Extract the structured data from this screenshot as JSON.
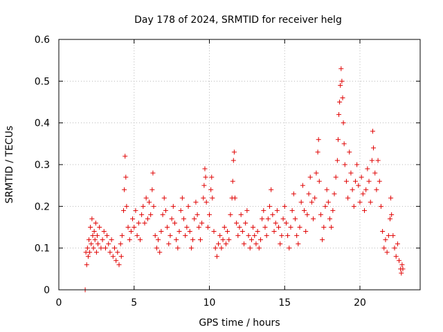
{
  "chart_data": {
    "type": "scatter",
    "title": "Day 178 of 2024, SRMTID for receiver helg",
    "xlabel": "GPS time / hours",
    "ylabel": "SRMTID / TECUs",
    "xlim": [
      0,
      24
    ],
    "ylim": [
      0,
      0.6
    ],
    "xticks": [
      0,
      5,
      10,
      15,
      20
    ],
    "yticks": [
      0,
      0.1,
      0.2,
      0.3,
      0.4,
      0.5,
      0.6
    ],
    "x_tick_labels": [
      "0",
      "5",
      "10",
      "15",
      "20"
    ],
    "y_tick_labels": [
      "0",
      "0.1",
      "0.2",
      "0.3",
      "0.4",
      "0.5",
      "0.6"
    ],
    "grid": true,
    "marker": "plus",
    "color": "#e00000",
    "series": [
      {
        "name": "SRMTID",
        "points": [
          [
            1.75,
            0.0
          ],
          [
            1.8,
            0.09
          ],
          [
            1.85,
            0.06
          ],
          [
            1.9,
            0.1
          ],
          [
            1.95,
            0.08
          ],
          [
            2.0,
            0.12
          ],
          [
            2.05,
            0.09
          ],
          [
            2.1,
            0.15
          ],
          [
            2.15,
            0.11
          ],
          [
            2.2,
            0.17
          ],
          [
            2.25,
            0.13
          ],
          [
            2.3,
            0.1
          ],
          [
            2.35,
            0.14
          ],
          [
            2.4,
            0.12
          ],
          [
            2.45,
            0.16
          ],
          [
            2.5,
            0.09
          ],
          [
            2.55,
            0.13
          ],
          [
            2.6,
            0.11
          ],
          [
            2.7,
            0.15
          ],
          [
            2.8,
            0.1
          ],
          [
            2.9,
            0.12
          ],
          [
            3.0,
            0.14
          ],
          [
            3.1,
            0.1
          ],
          [
            3.2,
            0.13
          ],
          [
            3.3,
            0.11
          ],
          [
            3.4,
            0.09
          ],
          [
            3.5,
            0.12
          ],
          [
            3.6,
            0.08
          ],
          [
            3.7,
            0.1
          ],
          [
            3.8,
            0.07
          ],
          [
            3.9,
            0.09
          ],
          [
            4.0,
            0.06
          ],
          [
            4.1,
            0.11
          ],
          [
            4.15,
            0.08
          ],
          [
            4.2,
            0.13
          ],
          [
            4.3,
            0.19
          ],
          [
            4.35,
            0.24
          ],
          [
            4.4,
            0.32
          ],
          [
            4.45,
            0.27
          ],
          [
            4.5,
            0.2
          ],
          [
            4.6,
            0.15
          ],
          [
            4.7,
            0.12
          ],
          [
            4.8,
            0.14
          ],
          [
            4.9,
            0.17
          ],
          [
            5.0,
            0.15
          ],
          [
            5.1,
            0.19
          ],
          [
            5.2,
            0.13
          ],
          [
            5.3,
            0.16
          ],
          [
            5.4,
            0.12
          ],
          [
            5.5,
            0.18
          ],
          [
            5.6,
            0.2
          ],
          [
            5.7,
            0.16
          ],
          [
            5.8,
            0.22
          ],
          [
            5.9,
            0.17
          ],
          [
            6.0,
            0.21
          ],
          [
            6.1,
            0.18
          ],
          [
            6.2,
            0.24
          ],
          [
            6.25,
            0.28
          ],
          [
            6.3,
            0.2
          ],
          [
            6.4,
            0.13
          ],
          [
            6.5,
            0.1
          ],
          [
            6.6,
            0.12
          ],
          [
            6.7,
            0.09
          ],
          [
            6.8,
            0.14
          ],
          [
            6.9,
            0.18
          ],
          [
            7.0,
            0.22
          ],
          [
            7.1,
            0.19
          ],
          [
            7.2,
            0.15
          ],
          [
            7.3,
            0.11
          ],
          [
            7.4,
            0.13
          ],
          [
            7.5,
            0.17
          ],
          [
            7.6,
            0.2
          ],
          [
            7.7,
            0.16
          ],
          [
            7.8,
            0.12
          ],
          [
            7.9,
            0.1
          ],
          [
            8.0,
            0.14
          ],
          [
            8.1,
            0.19
          ],
          [
            8.2,
            0.22
          ],
          [
            8.3,
            0.17
          ],
          [
            8.4,
            0.13
          ],
          [
            8.5,
            0.15
          ],
          [
            8.6,
            0.2
          ],
          [
            8.7,
            0.14
          ],
          [
            8.8,
            0.1
          ],
          [
            8.9,
            0.12
          ],
          [
            9.0,
            0.17
          ],
          [
            9.1,
            0.21
          ],
          [
            9.2,
            0.18
          ],
          [
            9.3,
            0.15
          ],
          [
            9.4,
            0.12
          ],
          [
            9.5,
            0.16
          ],
          [
            9.6,
            0.22
          ],
          [
            9.65,
            0.25
          ],
          [
            9.7,
            0.29
          ],
          [
            9.75,
            0.27
          ],
          [
            9.8,
            0.21
          ],
          [
            9.9,
            0.15
          ],
          [
            10.0,
            0.18
          ],
          [
            10.1,
            0.24
          ],
          [
            10.15,
            0.27
          ],
          [
            10.2,
            0.22
          ],
          [
            10.3,
            0.14
          ],
          [
            10.4,
            0.1
          ],
          [
            10.5,
            0.08
          ],
          [
            10.6,
            0.11
          ],
          [
            10.7,
            0.13
          ],
          [
            10.8,
            0.1
          ],
          [
            10.9,
            0.12
          ],
          [
            11.0,
            0.15
          ],
          [
            11.1,
            0.11
          ],
          [
            11.2,
            0.14
          ],
          [
            11.3,
            0.12
          ],
          [
            11.4,
            0.18
          ],
          [
            11.5,
            0.22
          ],
          [
            11.55,
            0.26
          ],
          [
            11.6,
            0.31
          ],
          [
            11.65,
            0.33
          ],
          [
            11.7,
            0.22
          ],
          [
            11.8,
            0.16
          ],
          [
            11.9,
            0.13
          ],
          [
            12.0,
            0.15
          ],
          [
            12.1,
            0.18
          ],
          [
            12.2,
            0.14
          ],
          [
            12.3,
            0.11
          ],
          [
            12.4,
            0.16
          ],
          [
            12.5,
            0.19
          ],
          [
            12.6,
            0.13
          ],
          [
            12.7,
            0.1
          ],
          [
            12.8,
            0.12
          ],
          [
            12.9,
            0.15
          ],
          [
            13.0,
            0.13
          ],
          [
            13.1,
            0.11
          ],
          [
            13.2,
            0.14
          ],
          [
            13.3,
            0.1
          ],
          [
            13.4,
            0.12
          ],
          [
            13.5,
            0.17
          ],
          [
            13.6,
            0.19
          ],
          [
            13.7,
            0.15
          ],
          [
            13.8,
            0.13
          ],
          [
            13.9,
            0.17
          ],
          [
            14.0,
            0.2
          ],
          [
            14.1,
            0.24
          ],
          [
            14.2,
            0.18
          ],
          [
            14.3,
            0.14
          ],
          [
            14.4,
            0.16
          ],
          [
            14.5,
            0.19
          ],
          [
            14.6,
            0.15
          ],
          [
            14.7,
            0.11
          ],
          [
            14.8,
            0.13
          ],
          [
            14.9,
            0.17
          ],
          [
            15.0,
            0.2
          ],
          [
            15.1,
            0.16
          ],
          [
            15.2,
            0.13
          ],
          [
            15.3,
            0.1
          ],
          [
            15.4,
            0.15
          ],
          [
            15.5,
            0.19
          ],
          [
            15.6,
            0.23
          ],
          [
            15.7,
            0.17
          ],
          [
            15.8,
            0.13
          ],
          [
            15.9,
            0.11
          ],
          [
            16.0,
            0.15
          ],
          [
            16.1,
            0.21
          ],
          [
            16.2,
            0.25
          ],
          [
            16.3,
            0.19
          ],
          [
            16.4,
            0.14
          ],
          [
            16.5,
            0.18
          ],
          [
            16.6,
            0.23
          ],
          [
            16.7,
            0.27
          ],
          [
            16.8,
            0.21
          ],
          [
            16.9,
            0.17
          ],
          [
            17.0,
            0.22
          ],
          [
            17.1,
            0.28
          ],
          [
            17.2,
            0.33
          ],
          [
            17.25,
            0.36
          ],
          [
            17.3,
            0.26
          ],
          [
            17.4,
            0.18
          ],
          [
            17.5,
            0.12
          ],
          [
            17.6,
            0.15
          ],
          [
            17.7,
            0.2
          ],
          [
            17.8,
            0.24
          ],
          [
            17.9,
            0.21
          ],
          [
            18.0,
            0.17
          ],
          [
            18.1,
            0.15
          ],
          [
            18.2,
            0.19
          ],
          [
            18.3,
            0.23
          ],
          [
            18.4,
            0.27
          ],
          [
            18.5,
            0.31
          ],
          [
            18.55,
            0.36
          ],
          [
            18.6,
            0.42
          ],
          [
            18.65,
            0.45
          ],
          [
            18.7,
            0.49
          ],
          [
            18.75,
            0.53
          ],
          [
            18.8,
            0.5
          ],
          [
            18.85,
            0.46
          ],
          [
            18.9,
            0.4
          ],
          [
            18.95,
            0.35
          ],
          [
            19.0,
            0.3
          ],
          [
            19.1,
            0.26
          ],
          [
            19.2,
            0.22
          ],
          [
            19.3,
            0.33
          ],
          [
            19.4,
            0.28
          ],
          [
            19.5,
            0.24
          ],
          [
            19.6,
            0.2
          ],
          [
            19.7,
            0.26
          ],
          [
            19.8,
            0.3
          ],
          [
            19.9,
            0.25
          ],
          [
            20.0,
            0.21
          ],
          [
            20.1,
            0.27
          ],
          [
            20.2,
            0.23
          ],
          [
            20.3,
            0.19
          ],
          [
            20.4,
            0.24
          ],
          [
            20.5,
            0.29
          ],
          [
            20.6,
            0.26
          ],
          [
            20.7,
            0.21
          ],
          [
            20.8,
            0.31
          ],
          [
            20.85,
            0.38
          ],
          [
            20.9,
            0.34
          ],
          [
            21.0,
            0.28
          ],
          [
            21.1,
            0.24
          ],
          [
            21.2,
            0.31
          ],
          [
            21.3,
            0.26
          ],
          [
            21.4,
            0.2
          ],
          [
            21.5,
            0.14
          ],
          [
            21.6,
            0.1
          ],
          [
            21.7,
            0.12
          ],
          [
            21.8,
            0.09
          ],
          [
            21.9,
            0.13
          ],
          [
            22.0,
            0.17
          ],
          [
            22.05,
            0.22
          ],
          [
            22.1,
            0.18
          ],
          [
            22.2,
            0.13
          ],
          [
            22.3,
            0.1
          ],
          [
            22.4,
            0.08
          ],
          [
            22.5,
            0.11
          ],
          [
            22.6,
            0.07
          ],
          [
            22.7,
            0.05
          ],
          [
            22.75,
            0.04
          ],
          [
            22.8,
            0.06
          ],
          [
            22.85,
            0.05
          ]
        ]
      }
    ]
  }
}
